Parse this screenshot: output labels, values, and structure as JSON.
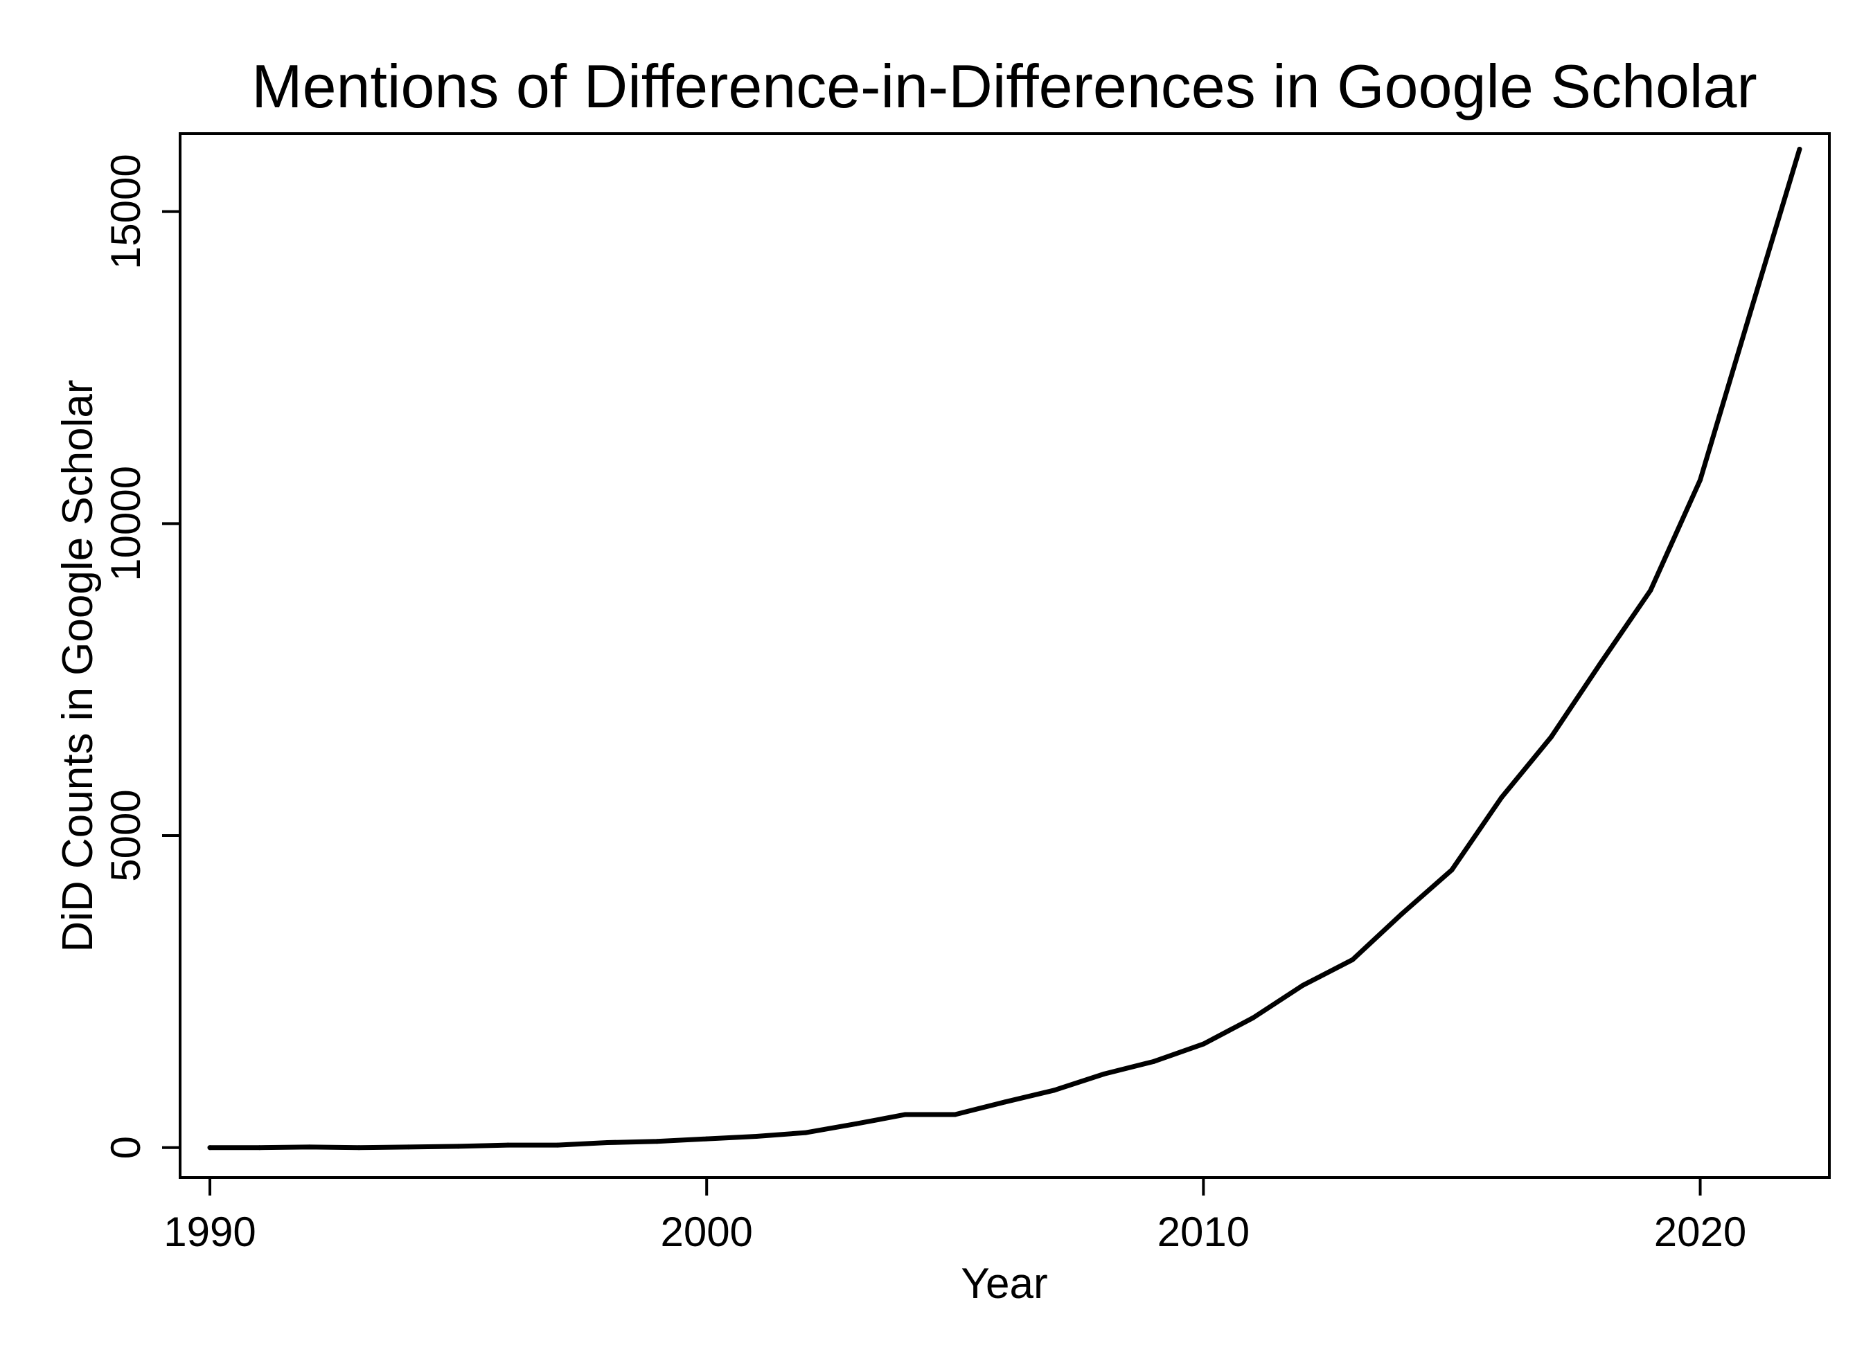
{
  "chart_data": {
    "type": "line",
    "title": "Mentions of Difference-in-Differences in Google Scholar",
    "xlabel": "Year",
    "ylabel": "DiD Counts in Google Scholar",
    "xlim": [
      1989.4,
      2022.6
    ],
    "ylim": [
      -480,
      16250
    ],
    "xticks": [
      1990,
      2000,
      2010,
      2020
    ],
    "yticks": [
      0,
      5000,
      10000,
      15000
    ],
    "grid": false,
    "legend": "none",
    "line_color": "#000000",
    "series": [
      {
        "x": [
          1990,
          1991,
          1992,
          1993,
          1994,
          1995,
          1996,
          1997,
          1998,
          1999,
          2000,
          2001,
          2002,
          2003,
          2004,
          2005,
          2006,
          2007,
          2008,
          2009,
          2010,
          2011,
          2012,
          2013,
          2014,
          2015,
          2016,
          2017,
          2018,
          2019,
          2020,
          2021,
          2022
        ],
        "values": [
          0,
          0,
          10,
          0,
          10,
          20,
          40,
          40,
          80,
          100,
          140,
          180,
          240,
          380,
          530,
          530,
          730,
          920,
          1180,
          1380,
          1660,
          2080,
          2600,
          3010,
          3750,
          4450,
          5610,
          6580,
          7770,
          8930,
          10700,
          13360,
          16000
        ]
      }
    ]
  }
}
